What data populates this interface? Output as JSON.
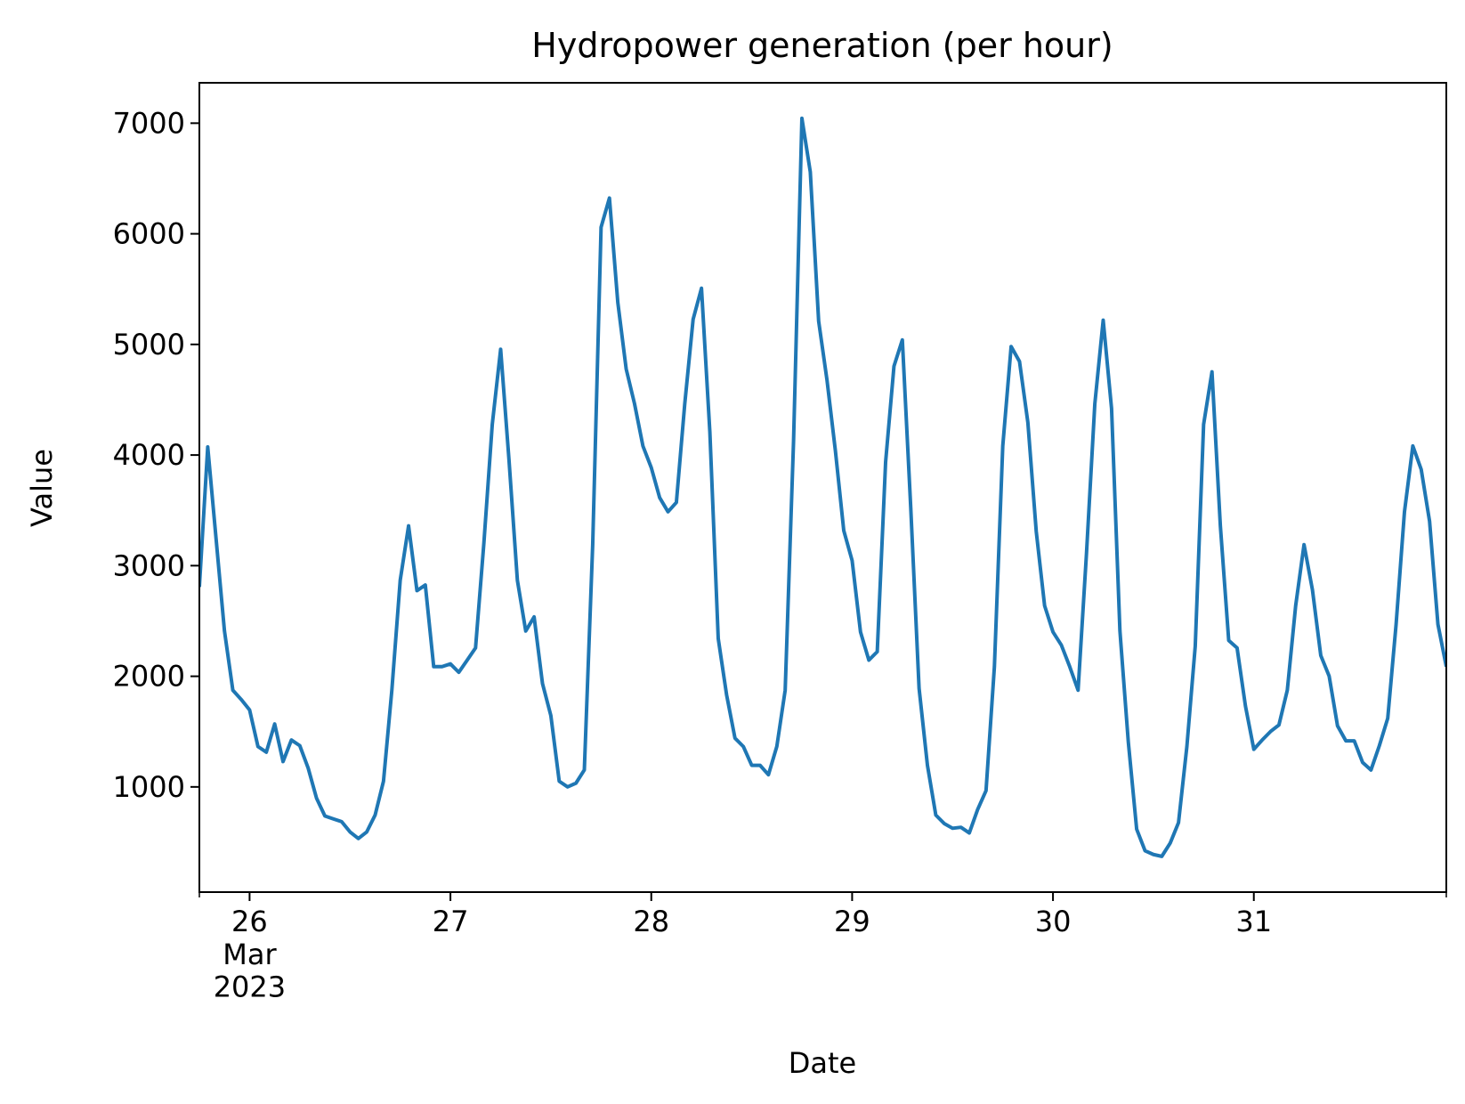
{
  "chart_data": {
    "type": "line",
    "title": "Hydropower generation (per hour)",
    "x_label": "Date",
    "y_label": "Value",
    "color": "#1f77b4",
    "x": [
      "2023-03-25T18:00",
      "2023-03-25T19:00",
      "2023-03-25T20:00",
      "2023-03-25T21:00",
      "2023-03-25T22:00",
      "2023-03-25T23:00",
      "2023-03-26T00:00",
      "2023-03-26T01:00",
      "2023-03-26T02:00",
      "2023-03-26T03:00",
      "2023-03-26T04:00",
      "2023-03-26T05:00",
      "2023-03-26T06:00",
      "2023-03-26T07:00",
      "2023-03-26T08:00",
      "2023-03-26T09:00",
      "2023-03-26T10:00",
      "2023-03-26T11:00",
      "2023-03-26T12:00",
      "2023-03-26T13:00",
      "2023-03-26T14:00",
      "2023-03-26T15:00",
      "2023-03-26T16:00",
      "2023-03-26T17:00",
      "2023-03-26T18:00",
      "2023-03-26T19:00",
      "2023-03-26T20:00",
      "2023-03-26T21:00",
      "2023-03-26T22:00",
      "2023-03-26T23:00",
      "2023-03-27T00:00",
      "2023-03-27T01:00",
      "2023-03-27T02:00",
      "2023-03-27T03:00",
      "2023-03-27T04:00",
      "2023-03-27T05:00",
      "2023-03-27T06:00",
      "2023-03-27T07:00",
      "2023-03-27T08:00",
      "2023-03-27T09:00",
      "2023-03-27T10:00",
      "2023-03-27T11:00",
      "2023-03-27T12:00",
      "2023-03-27T13:00",
      "2023-03-27T14:00",
      "2023-03-27T15:00",
      "2023-03-27T16:00",
      "2023-03-27T17:00",
      "2023-03-27T18:00",
      "2023-03-27T19:00",
      "2023-03-27T20:00",
      "2023-03-27T21:00",
      "2023-03-27T22:00",
      "2023-03-27T23:00",
      "2023-03-28T00:00",
      "2023-03-28T01:00",
      "2023-03-28T02:00",
      "2023-03-28T03:00",
      "2023-03-28T04:00",
      "2023-03-28T05:00",
      "2023-03-28T06:00",
      "2023-03-28T07:00",
      "2023-03-28T08:00",
      "2023-03-28T09:00",
      "2023-03-28T10:00",
      "2023-03-28T11:00",
      "2023-03-28T12:00",
      "2023-03-28T13:00",
      "2023-03-28T14:00",
      "2023-03-28T15:00",
      "2023-03-28T16:00",
      "2023-03-28T17:00",
      "2023-03-28T18:00",
      "2023-03-28T19:00",
      "2023-03-28T20:00",
      "2023-03-28T21:00",
      "2023-03-28T22:00",
      "2023-03-28T23:00",
      "2023-03-29T00:00",
      "2023-03-29T01:00",
      "2023-03-29T02:00",
      "2023-03-29T03:00",
      "2023-03-29T04:00",
      "2023-03-29T05:00",
      "2023-03-29T06:00",
      "2023-03-29T07:00",
      "2023-03-29T08:00",
      "2023-03-29T09:00",
      "2023-03-29T10:00",
      "2023-03-29T11:00",
      "2023-03-29T12:00",
      "2023-03-29T13:00",
      "2023-03-29T14:00",
      "2023-03-29T15:00",
      "2023-03-29T16:00",
      "2023-03-29T17:00",
      "2023-03-29T18:00",
      "2023-03-29T19:00",
      "2023-03-29T20:00",
      "2023-03-29T21:00",
      "2023-03-29T22:00",
      "2023-03-29T23:00",
      "2023-03-30T00:00",
      "2023-03-30T01:00",
      "2023-03-30T02:00",
      "2023-03-30T03:00",
      "2023-03-30T04:00",
      "2023-03-30T05:00",
      "2023-03-30T06:00",
      "2023-03-30T07:00",
      "2023-03-30T08:00",
      "2023-03-30T09:00",
      "2023-03-30T10:00",
      "2023-03-30T11:00",
      "2023-03-30T12:00",
      "2023-03-30T13:00",
      "2023-03-30T14:00",
      "2023-03-30T15:00",
      "2023-03-30T16:00",
      "2023-03-30T17:00",
      "2023-03-30T18:00",
      "2023-03-30T19:00",
      "2023-03-30T20:00",
      "2023-03-30T21:00",
      "2023-03-30T22:00",
      "2023-03-30T23:00",
      "2023-03-31T00:00",
      "2023-03-31T01:00",
      "2023-03-31T02:00",
      "2023-03-31T03:00",
      "2023-03-31T04:00",
      "2023-03-31T05:00",
      "2023-03-31T06:00",
      "2023-03-31T07:00",
      "2023-03-31T08:00",
      "2023-03-31T09:00",
      "2023-03-31T10:00",
      "2023-03-31T11:00",
      "2023-03-31T12:00",
      "2023-03-31T13:00",
      "2023-03-31T14:00",
      "2023-03-31T15:00",
      "2023-03-31T16:00",
      "2023-03-31T17:00",
      "2023-03-31T18:00",
      "2023-03-31T19:00",
      "2023-03-31T20:00",
      "2023-03-31T21:00",
      "2023-03-31T22:00",
      "2023-03-31T23:00"
    ],
    "values": [
      2808,
      4073,
      3240,
      2409,
      1874,
      1790,
      1696,
      1365,
      1314,
      1569,
      1229,
      1424,
      1373,
      1170,
      898,
      737,
      711,
      686,
      593,
      533,
      593,
      745,
      1051,
      1874,
      2868,
      3360,
      2774,
      2825,
      2087,
      2087,
      2112,
      2036,
      2146,
      2256,
      3207,
      4277,
      4956,
      3954,
      2868,
      2409,
      2537,
      1934,
      1645,
      1051,
      1000,
      1034,
      1153,
      3190,
      6059,
      6323,
      5380,
      4778,
      4463,
      4082,
      3886,
      3615,
      3487,
      3572,
      4463,
      5227,
      5508,
      4209,
      2341,
      1832,
      1441,
      1365,
      1195,
      1195,
      1110,
      1365,
      1874,
      4124,
      7044,
      6560,
      5210,
      4676,
      4039,
      3317,
      3046,
      2401,
      2146,
      2222,
      3937,
      4803,
      5041,
      3530,
      1891,
      1195,
      745,
      669,
      626,
      635,
      584,
      796,
      966,
      2087,
      4082,
      4981,
      4846,
      4294,
      3309,
      2638,
      2401,
      2282,
      2087,
      1874,
      3105,
      4463,
      5219,
      4421,
      2409,
      1407,
      618,
      423,
      389,
      372,
      491,
      677,
      1365,
      2273,
      4277,
      4752,
      3360,
      2324,
      2256,
      1730,
      1340,
      1424,
      1501,
      1560,
      1874,
      2638,
      3190,
      2783,
      2188,
      2002,
      1552,
      1416,
      1416,
      1221,
      1153,
      1373,
      1620,
      2469,
      3487,
      4082,
      3870,
      3402,
      2469,
      2087
    ],
    "xlim": [
      "2023-03-25T18:00",
      "2023-03-31T23:00"
    ],
    "xticks": [
      {
        "value": "2023-03-26T00:00",
        "label": "26\nMar\n2023"
      },
      {
        "value": "2023-03-27T00:00",
        "label": "27"
      },
      {
        "value": "2023-03-28T00:00",
        "label": "28"
      },
      {
        "value": "2023-03-29T00:00",
        "label": "29"
      },
      {
        "value": "2023-03-30T00:00",
        "label": "30"
      },
      {
        "value": "2023-03-31T00:00",
        "label": "31"
      }
    ],
    "ylim": [
      49,
      7365
    ],
    "yticks": [
      1000,
      2000,
      3000,
      4000,
      5000,
      6000,
      7000
    ]
  }
}
